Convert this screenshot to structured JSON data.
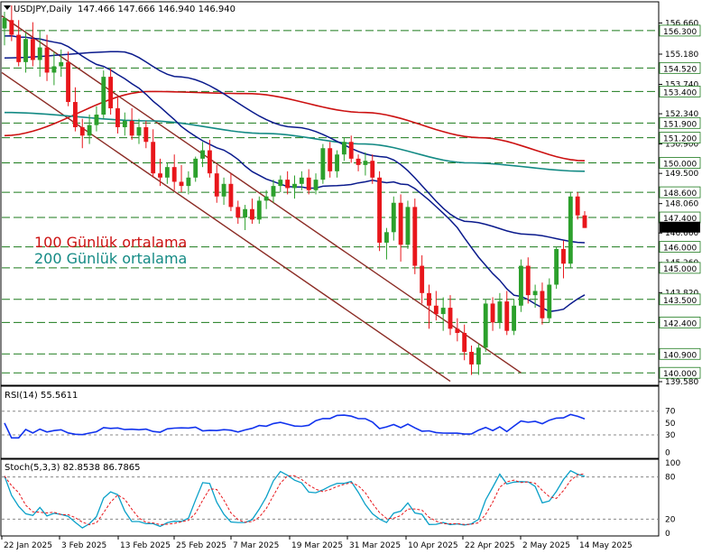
{
  "header": {
    "symbol": "USDJPY,Daily",
    "ohlc": "147.466 147.666 146.940 146.940"
  },
  "legend_labels": {
    "ma100": "100 Günlük ortalama",
    "ma200": "200 Günlük ortalama"
  },
  "colors": {
    "bull": "#2ca02c",
    "bear": "#e8161b",
    "ma20": "#0a1a8c",
    "ma50": "#0a1a8c",
    "ma100": "#cc1111",
    "ma200": "#138a84",
    "channel": "#8b2b24",
    "hline": "#1b7a1b",
    "rsi": "#1133ee",
    "stoch_main": "#0aa0c8",
    "stoch_signal": "#e8161b",
    "current_price_bg": "#000000"
  },
  "chart_data": {
    "type": "candlestick",
    "main_panel": {
      "ylim": [
        139.58,
        157.5
      ],
      "y_ticks": [
        "156.660",
        "155.180",
        "153.740",
        "152.340",
        "150.900",
        "149.500",
        "148.060",
        "146.660",
        "145.260",
        "143.820",
        "142.400",
        "140.960",
        "139.580"
      ],
      "horizontal_levels": [
        156.3,
        154.52,
        153.4,
        151.9,
        151.2,
        150.0,
        148.6,
        147.4,
        146.0,
        145.0,
        143.5,
        142.4,
        140.9,
        140.0
      ],
      "current_price": "146.940",
      "candles": [
        {
          "o": 156.4,
          "h": 157.2,
          "l": 155.6,
          "c": 156.9
        },
        {
          "o": 156.8,
          "h": 157.5,
          "l": 155.8,
          "c": 156.1
        },
        {
          "o": 156.1,
          "h": 156.8,
          "l": 154.6,
          "c": 154.8
        },
        {
          "o": 154.8,
          "h": 156.2,
          "l": 154.3,
          "c": 155.9
        },
        {
          "o": 155.9,
          "h": 156.7,
          "l": 154.6,
          "c": 154.9
        },
        {
          "o": 154.9,
          "h": 156.3,
          "l": 154.1,
          "c": 155.5
        },
        {
          "o": 155.5,
          "h": 156.1,
          "l": 153.9,
          "c": 154.3
        },
        {
          "o": 154.3,
          "h": 155.3,
          "l": 153.7,
          "c": 154.6
        },
        {
          "o": 154.6,
          "h": 155.4,
          "l": 154.1,
          "c": 154.8
        },
        {
          "o": 154.8,
          "h": 155.3,
          "l": 152.7,
          "c": 152.9
        },
        {
          "o": 152.9,
          "h": 153.6,
          "l": 151.5,
          "c": 151.7
        },
        {
          "o": 151.7,
          "h": 152.1,
          "l": 150.7,
          "c": 151.3
        },
        {
          "o": 151.3,
          "h": 152.3,
          "l": 150.9,
          "c": 151.8
        },
        {
          "o": 151.8,
          "h": 152.7,
          "l": 151.5,
          "c": 152.3
        },
        {
          "o": 152.3,
          "h": 154.4,
          "l": 152.1,
          "c": 154.1
        },
        {
          "o": 154.1,
          "h": 154.5,
          "l": 152.3,
          "c": 152.6
        },
        {
          "o": 152.6,
          "h": 153.1,
          "l": 151.4,
          "c": 151.7
        },
        {
          "o": 151.7,
          "h": 152.4,
          "l": 151.3,
          "c": 152.0
        },
        {
          "o": 152.0,
          "h": 152.6,
          "l": 151.1,
          "c": 151.3
        },
        {
          "o": 151.3,
          "h": 152.1,
          "l": 150.9,
          "c": 151.7
        },
        {
          "o": 151.7,
          "h": 152.0,
          "l": 150.7,
          "c": 151.0
        },
        {
          "o": 151.0,
          "h": 151.6,
          "l": 149.3,
          "c": 149.5
        },
        {
          "o": 149.5,
          "h": 150.2,
          "l": 148.9,
          "c": 149.3
        },
        {
          "o": 149.3,
          "h": 150.0,
          "l": 149.0,
          "c": 149.8
        },
        {
          "o": 149.8,
          "h": 150.4,
          "l": 148.7,
          "c": 149.1
        },
        {
          "o": 149.1,
          "h": 149.9,
          "l": 148.6,
          "c": 148.9
        },
        {
          "o": 148.9,
          "h": 149.6,
          "l": 148.5,
          "c": 149.3
        },
        {
          "o": 149.3,
          "h": 150.3,
          "l": 149.1,
          "c": 150.2
        },
        {
          "o": 150.2,
          "h": 151.0,
          "l": 149.8,
          "c": 150.6
        },
        {
          "o": 150.6,
          "h": 151.1,
          "l": 149.3,
          "c": 149.5
        },
        {
          "o": 149.5,
          "h": 149.9,
          "l": 148.1,
          "c": 148.4
        },
        {
          "o": 148.4,
          "h": 149.3,
          "l": 148.0,
          "c": 149.0
        },
        {
          "o": 149.0,
          "h": 149.5,
          "l": 147.7,
          "c": 147.9
        },
        {
          "o": 147.9,
          "h": 148.2,
          "l": 147.1,
          "c": 147.4
        },
        {
          "o": 147.4,
          "h": 148.0,
          "l": 146.8,
          "c": 147.8
        },
        {
          "o": 147.8,
          "h": 148.3,
          "l": 147.1,
          "c": 147.3
        },
        {
          "o": 147.3,
          "h": 148.4,
          "l": 147.1,
          "c": 148.2
        },
        {
          "o": 148.2,
          "h": 148.7,
          "l": 147.8,
          "c": 148.4
        },
        {
          "o": 148.4,
          "h": 149.2,
          "l": 148.1,
          "c": 148.9
        },
        {
          "o": 148.9,
          "h": 149.4,
          "l": 148.6,
          "c": 149.2
        },
        {
          "o": 149.2,
          "h": 149.6,
          "l": 148.5,
          "c": 148.8
        },
        {
          "o": 148.8,
          "h": 149.4,
          "l": 148.3,
          "c": 149.0
        },
        {
          "o": 149.0,
          "h": 149.6,
          "l": 148.7,
          "c": 149.3
        },
        {
          "o": 149.3,
          "h": 149.7,
          "l": 148.5,
          "c": 148.7
        },
        {
          "o": 148.7,
          "h": 149.5,
          "l": 148.5,
          "c": 149.2
        },
        {
          "o": 149.2,
          "h": 150.9,
          "l": 149.0,
          "c": 150.7
        },
        {
          "o": 150.7,
          "h": 151.0,
          "l": 149.3,
          "c": 149.6
        },
        {
          "o": 149.6,
          "h": 150.6,
          "l": 149.3,
          "c": 150.4
        },
        {
          "o": 150.4,
          "h": 151.2,
          "l": 150.1,
          "c": 151.0
        },
        {
          "o": 151.0,
          "h": 151.3,
          "l": 150.0,
          "c": 150.2
        },
        {
          "o": 150.2,
          "h": 150.4,
          "l": 149.6,
          "c": 149.9
        },
        {
          "o": 149.9,
          "h": 150.5,
          "l": 149.4,
          "c": 150.1
        },
        {
          "o": 150.1,
          "h": 150.4,
          "l": 149.0,
          "c": 149.3
        },
        {
          "o": 149.3,
          "h": 149.6,
          "l": 145.8,
          "c": 146.2
        },
        {
          "o": 146.2,
          "h": 146.9,
          "l": 145.4,
          "c": 146.7
        },
        {
          "o": 146.7,
          "h": 148.4,
          "l": 146.3,
          "c": 148.1
        },
        {
          "o": 148.1,
          "h": 148.5,
          "l": 145.3,
          "c": 146.1
        },
        {
          "o": 146.1,
          "h": 148.2,
          "l": 145.9,
          "c": 147.9
        },
        {
          "o": 147.9,
          "h": 148.3,
          "l": 144.7,
          "c": 145.1
        },
        {
          "o": 145.1,
          "h": 145.6,
          "l": 143.3,
          "c": 143.8
        },
        {
          "o": 143.8,
          "h": 144.2,
          "l": 142.1,
          "c": 143.2
        },
        {
          "o": 143.2,
          "h": 143.9,
          "l": 142.5,
          "c": 142.8
        },
        {
          "o": 142.8,
          "h": 143.6,
          "l": 142.0,
          "c": 143.1
        },
        {
          "o": 143.1,
          "h": 143.7,
          "l": 141.8,
          "c": 142.1
        },
        {
          "o": 142.1,
          "h": 142.6,
          "l": 141.5,
          "c": 141.9
        },
        {
          "o": 141.9,
          "h": 142.3,
          "l": 140.6,
          "c": 141.0
        },
        {
          "o": 141.0,
          "h": 141.3,
          "l": 139.9,
          "c": 140.4
        },
        {
          "o": 140.4,
          "h": 141.4,
          "l": 139.9,
          "c": 141.2
        },
        {
          "o": 141.2,
          "h": 143.5,
          "l": 141.0,
          "c": 143.3
        },
        {
          "o": 143.3,
          "h": 143.6,
          "l": 142.0,
          "c": 142.4
        },
        {
          "o": 142.4,
          "h": 143.8,
          "l": 142.1,
          "c": 143.4
        },
        {
          "o": 143.4,
          "h": 143.9,
          "l": 141.8,
          "c": 142.0
        },
        {
          "o": 142.0,
          "h": 143.5,
          "l": 141.8,
          "c": 143.2
        },
        {
          "o": 143.2,
          "h": 145.4,
          "l": 142.9,
          "c": 145.1
        },
        {
          "o": 145.1,
          "h": 145.5,
          "l": 143.3,
          "c": 143.7
        },
        {
          "o": 143.7,
          "h": 144.2,
          "l": 143.1,
          "c": 143.9
        },
        {
          "o": 143.9,
          "h": 144.3,
          "l": 142.3,
          "c": 142.6
        },
        {
          "o": 142.6,
          "h": 144.5,
          "l": 142.4,
          "c": 144.2
        },
        {
          "o": 144.2,
          "h": 146.0,
          "l": 144.0,
          "c": 145.9
        },
        {
          "o": 145.9,
          "h": 146.3,
          "l": 144.5,
          "c": 145.2
        },
        {
          "o": 145.2,
          "h": 148.6,
          "l": 145.0,
          "c": 148.4
        },
        {
          "o": 148.4,
          "h": 148.6,
          "l": 147.3,
          "c": 147.5
        },
        {
          "o": 147.5,
          "h": 147.7,
          "l": 146.9,
          "c": 146.9
        }
      ]
    },
    "rsi_panel": {
      "label": "RSI(14) 55.5611",
      "y_ticks": [
        "70",
        "50",
        "30",
        "0"
      ]
    },
    "stoch_panel": {
      "label": "Stoch(5,3,3) 82.8538 86.7865",
      "y_ticks": [
        "100",
        "80",
        "20",
        "0"
      ]
    },
    "x_labels": [
      "22 Jan 2025",
      "3 Feb 2025",
      "13 Feb 2025",
      "25 Feb 2025",
      "7 Mar 2025",
      "19 Mar 2025",
      "31 Mar 2025",
      "10 Apr 2025",
      "22 Apr 2025",
      "2 May 2025",
      "14 May 2025"
    ]
  }
}
